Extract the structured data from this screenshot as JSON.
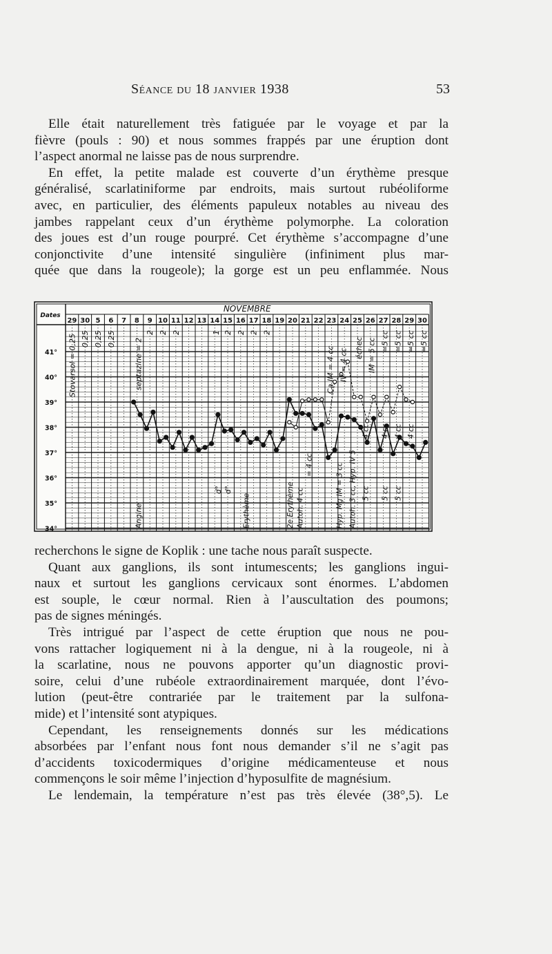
{
  "header": {
    "title": "Séance du 18 janvier 1938",
    "page_number": "53"
  },
  "text_top": [
    {
      "lines": [
        "Elle était naturellement très fatiguée par le voyage et par la",
        "fièvre (pouls : 90) et nous sommes frappés par une éruption dont",
        "l’aspect anormal ne laisse pas de nous surprendre."
      ]
    },
    {
      "lines": [
        "En effet, la petite malade est couverte d’un érythème presque",
        "généralisé, scarlatiniforme par endroits, mais surtout rubéoliforme",
        "avec, en particulier, des éléments papuleux notables au niveau des",
        "jambes rappelant ceux d’un érythème polymorphe. La coloration",
        "des joues est d’un rouge pourpré. Cet érythème s’accompagne d’une",
        "conjonctivite d’une intensité singulière (infiniment plus mar-",
        "quée que dans la rougeole); la gorge est un peu enflammée. Nous"
      ],
      "continues": true
    }
  ],
  "text_bottom": [
    {
      "lines": [
        "recherchons le signe de Koplik : une tache nous paraît suspecte."
      ],
      "no_indent": true
    },
    {
      "lines": [
        "Quant aux ganglions, ils sont intumescents; les ganglions ingui-",
        "naux et surtout les ganglions cervicaux sont énormes. L’abdomen",
        "est souple, le cœur normal. Rien à l’auscultation des poumons;",
        "pas de signes méningés."
      ]
    },
    {
      "lines": [
        "Très intrigué par l’aspect de cette éruption que nous ne pou-",
        "vons rattacher logiquement ni à la dengue, ni à la rougeole, ni à",
        "la scarlatine, nous ne pouvons apporter qu’un diagnostic provi-",
        "soire, celui d’une rubéole extraordinairement marquée, dont l’évo-",
        "lution (peut-être contrariée par le traitement par la sulfona-",
        "mide) et l’intensité sont atypiques."
      ]
    },
    {
      "lines": [
        "Cependant, les renseignements donnés sur les médications",
        "absorbées par l’enfant nous font nous demander s’il ne s’agit pas",
        "d’accidents toxicodermiques d’origine médicamenteuse et nous",
        "commençons le soir même l’injection d’hyposulfite de magnésium."
      ]
    },
    {
      "lines": [
        "Le lendemain, la température n’est pas très élevée (38°,5). Le"
      ],
      "continues": true
    }
  ],
  "chart_data": {
    "type": "line",
    "title": "",
    "row_header": "Dates",
    "month_label": "NOVEMBRE",
    "categories": [
      "29",
      "30",
      "5",
      "6",
      "7",
      "8",
      "9",
      "10",
      "11",
      "12",
      "13",
      "14",
      "15",
      "16",
      "17",
      "18",
      "19",
      "20",
      "21",
      "22",
      "23",
      "24",
      "25",
      "26",
      "27",
      "28",
      "29",
      "30"
    ],
    "slots_per_day": [
      "matin",
      "soir"
    ],
    "y_ticks": [
      "41°",
      "40°",
      "39°",
      "38°",
      "37°",
      "36°",
      "35°",
      "34°"
    ],
    "ylim": [
      34,
      42
    ],
    "grid": true,
    "series": [
      {
        "style": "solid filled dots",
        "color": "#111111",
        "points": [
          [
            "8",
            1,
            39.0
          ],
          [
            "8",
            2,
            38.5
          ],
          [
            "9",
            1,
            37.95
          ],
          [
            "9",
            2,
            38.6
          ],
          [
            "10",
            1,
            37.45
          ],
          [
            "10",
            2,
            37.6
          ],
          [
            "11",
            1,
            37.2
          ],
          [
            "11",
            2,
            37.8
          ],
          [
            "12",
            1,
            37.1
          ],
          [
            "12",
            2,
            37.6
          ],
          [
            "13",
            1,
            37.1
          ],
          [
            "13",
            2,
            37.2
          ],
          [
            "14",
            1,
            37.35
          ],
          [
            "14",
            2,
            38.5
          ],
          [
            "15",
            1,
            37.85
          ],
          [
            "15",
            2,
            37.9
          ],
          [
            "16",
            1,
            37.5
          ],
          [
            "16",
            2,
            37.8
          ],
          [
            "17",
            1,
            37.4
          ],
          [
            "17",
            2,
            37.55
          ],
          [
            "18",
            1,
            37.3
          ],
          [
            "18",
            2,
            37.8
          ],
          [
            "19",
            1,
            37.1
          ],
          [
            "19",
            2,
            37.55
          ],
          [
            "20",
            1,
            39.1
          ],
          [
            "20",
            2,
            38.55
          ],
          [
            "21",
            1,
            38.55
          ],
          [
            "21",
            2,
            38.5
          ],
          [
            "22",
            1,
            37.95
          ],
          [
            "22",
            2,
            38.1
          ],
          [
            "23",
            1,
            36.8
          ],
          [
            "23",
            2,
            37.1
          ],
          [
            "24",
            1,
            38.45
          ],
          [
            "24",
            2,
            38.4
          ],
          [
            "25",
            1,
            38.3
          ],
          [
            "25",
            2,
            38.0
          ],
          [
            "26",
            1,
            37.4
          ],
          [
            "26",
            2,
            38.35
          ],
          [
            "27",
            1,
            37.1
          ],
          [
            "27",
            2,
            38.05
          ],
          [
            "28",
            1,
            36.95
          ],
          [
            "28",
            2,
            37.6
          ],
          [
            "29",
            1,
            37.35
          ],
          [
            "29",
            2,
            37.25
          ],
          [
            "30",
            1,
            36.8
          ],
          [
            "30",
            2,
            37.4
          ]
        ]
      },
      {
        "style": "dashed open circles",
        "color": "#111111",
        "points": [
          [
            "20",
            1,
            38.2
          ],
          [
            "20",
            2,
            38.0
          ],
          [
            "21",
            1,
            39.05
          ],
          [
            "21",
            2,
            39.1
          ],
          [
            "22",
            1,
            39.1
          ],
          [
            "22",
            2,
            39.1
          ],
          [
            "23",
            1,
            38.2
          ],
          [
            "23",
            2,
            39.8
          ],
          [
            "24",
            1,
            40.1
          ],
          [
            "24",
            2,
            40.6
          ],
          [
            "25",
            1,
            39.2
          ],
          [
            "25",
            2,
            39.2
          ],
          [
            "26",
            1,
            38.25
          ],
          [
            "26",
            2,
            39.2
          ],
          [
            "27",
            1,
            38.5
          ],
          [
            "27",
            2,
            39.2
          ],
          [
            "28",
            1,
            38.6
          ],
          [
            "28",
            2,
            39.6
          ],
          [
            "29",
            1,
            39.1
          ],
          [
            "29",
            2,
            39.0
          ]
        ]
      }
    ],
    "annotations_top": [
      "Stovarsol = 0,25",
      "0,25",
      "0,25",
      "0,25",
      "septazine = 2",
      "2",
      "2",
      "2",
      "1",
      "2",
      "2",
      "2",
      "2",
      "Ca IM = 4 cc",
      "IV = 4 cc",
      "échec",
      "IM = 5 cc",
      "=5 cc",
      "=5 cc",
      "=5 cc",
      "=5 cc"
    ],
    "annotations_bottom": [
      "Angine",
      "d°",
      "d°",
      "Erythème",
      "2e Erythème",
      "Autoh. 4 cc",
      "= 4 cc",
      "Hyp. Mg IM = 3 cc",
      "Autoh. 3 cc, Hyp. IV 5",
      "5 cc",
      "4 cc",
      "5 cc",
      "4 cc",
      "5 cc",
      "4 cc",
      "4 cc"
    ]
  }
}
